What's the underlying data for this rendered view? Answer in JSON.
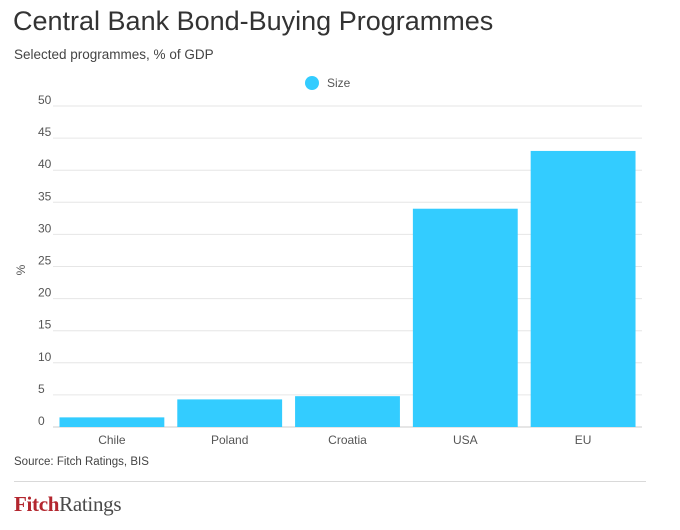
{
  "chart_data": {
    "type": "bar",
    "title": "Central Bank Bond-Buying Programmes",
    "subtitle": "Selected programmes, % of GDP",
    "categories": [
      "Chile",
      "Poland",
      "Croatia",
      "USA",
      "EU"
    ],
    "series": [
      {
        "name": "Size",
        "values": [
          1.5,
          4.3,
          4.8,
          34,
          43
        ]
      }
    ],
    "ylabel": "%",
    "xlabel": "",
    "ylim": [
      0,
      50
    ],
    "yticks": [
      "0",
      "5",
      "10",
      "15",
      "20",
      "25",
      "30",
      "35",
      "40",
      "45",
      "50"
    ],
    "grid": true,
    "legend": "top-center",
    "bar_color": "#33ccff"
  },
  "source": "Source: Fitch Ratings, BIS",
  "brand": {
    "part1": "Fitch",
    "part2": "Ratings",
    "color_primary": "#b3262e",
    "color_secondary": "#4a4a4a"
  }
}
